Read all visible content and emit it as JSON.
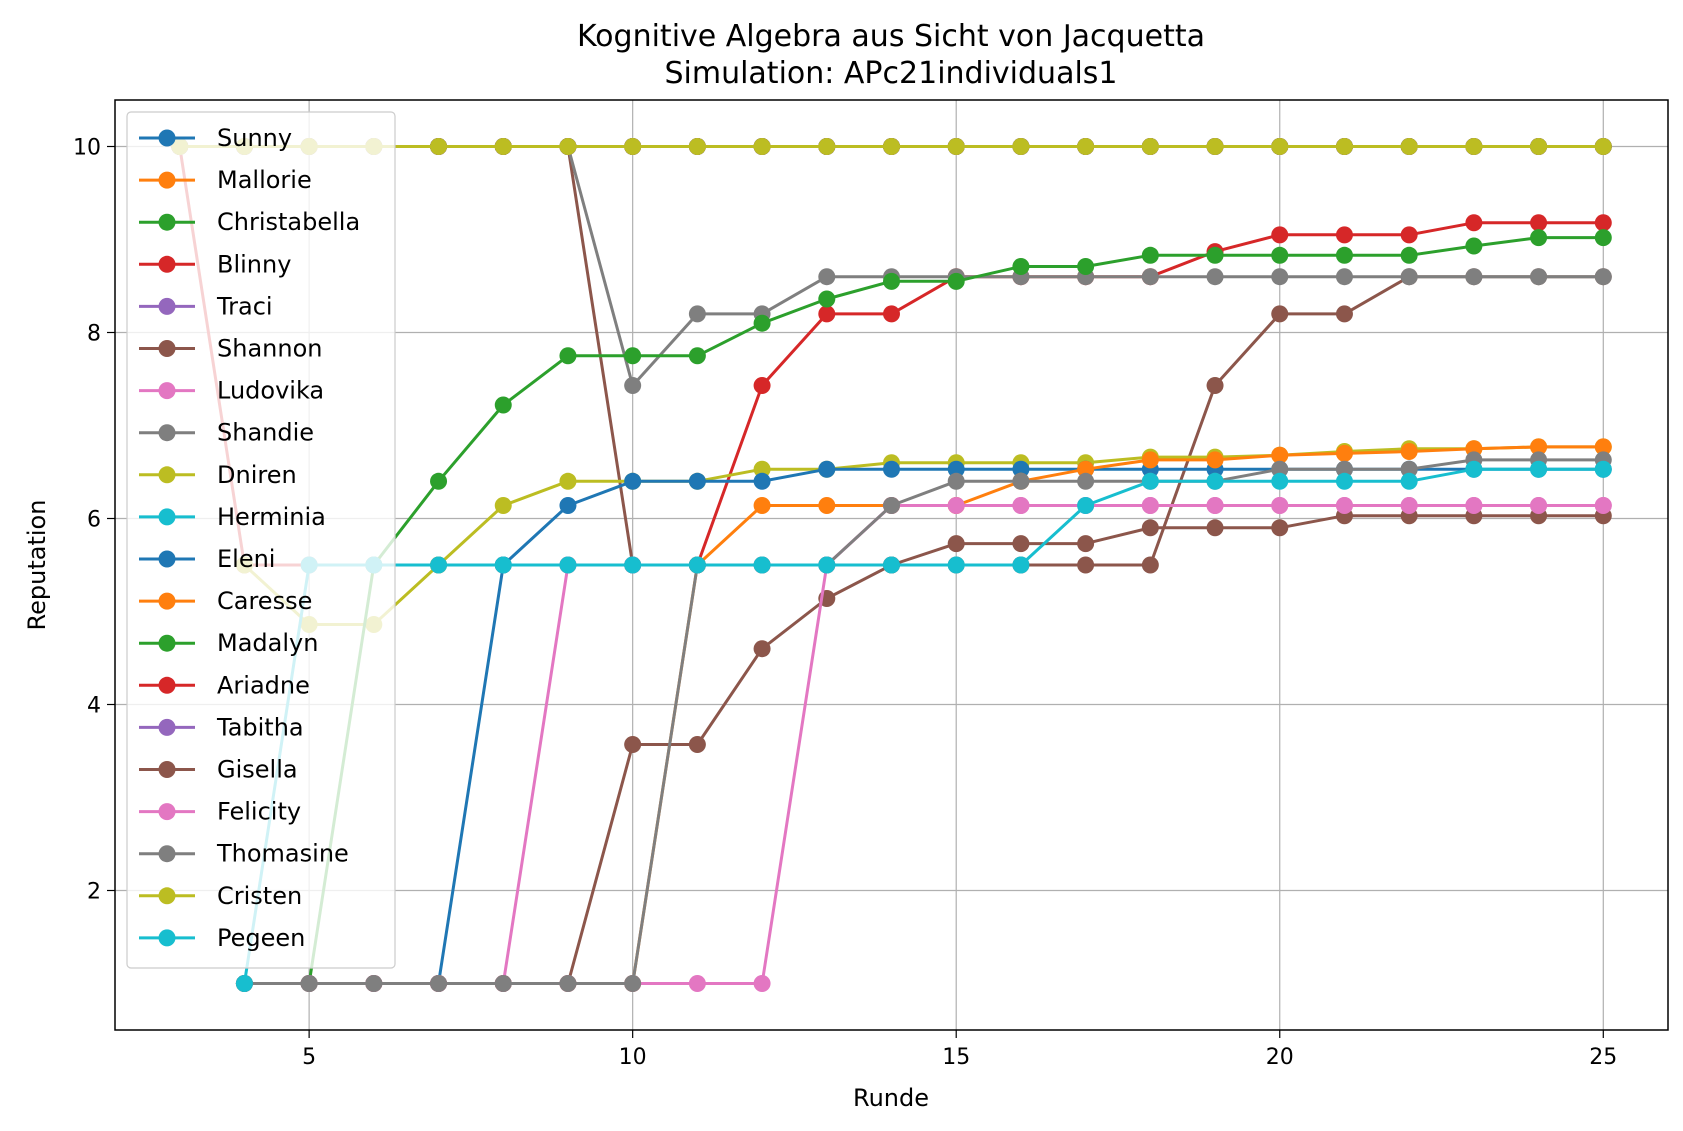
{
  "chart_data": {
    "type": "line",
    "title": "Kognitive Algebra aus Sicht von Jacquetta",
    "subtitle": "Simulation: APc21individuals1",
    "xlabel": "Runde",
    "ylabel": "Reputation",
    "xlim": [
      2,
      26
    ],
    "ylim": [
      0.5,
      10.5
    ],
    "xticks": [
      5,
      10,
      15,
      20,
      25
    ],
    "yticks": [
      2,
      4,
      6,
      8,
      10
    ],
    "grid": true,
    "legend_position": "upper-left",
    "series": [
      {
        "name": "Sunny",
        "color": "#1f77b4",
        "x": [
          3,
          4,
          5,
          6,
          7,
          8,
          9,
          10,
          11,
          12,
          13,
          14,
          15,
          16,
          17,
          18,
          19,
          20,
          21,
          22,
          23,
          24,
          25
        ],
        "y": [
          10,
          10,
          10,
          10,
          10,
          10,
          10,
          10,
          10,
          10,
          10,
          10,
          10,
          10,
          10,
          10,
          10,
          10,
          10,
          10,
          10,
          10,
          10
        ]
      },
      {
        "name": "Mallorie",
        "color": "#ff7f0e",
        "x": [
          3,
          4,
          5,
          6,
          7,
          8,
          9,
          10,
          11,
          12,
          13,
          14,
          15,
          16,
          17,
          18,
          19,
          20,
          21,
          22,
          23,
          24,
          25
        ],
        "y": [
          10,
          10,
          10,
          10,
          10,
          10,
          10,
          10,
          10,
          10,
          10,
          10,
          10,
          10,
          10,
          10,
          10,
          10,
          10,
          10,
          10,
          10,
          10
        ]
      },
      {
        "name": "Christabella",
        "color": "#2ca02c",
        "x": [
          3,
          4,
          5,
          6,
          7,
          8,
          9,
          10,
          11,
          12,
          13,
          14,
          15,
          16,
          17,
          18,
          19,
          20,
          21,
          22,
          23,
          24,
          25
        ],
        "y": [
          10,
          10,
          10,
          10,
          10,
          10,
          10,
          10,
          10,
          10,
          10,
          10,
          10,
          10,
          10,
          10,
          10,
          10,
          10,
          10,
          10,
          10,
          10
        ]
      },
      {
        "name": "Blinny",
        "color": "#d62728",
        "x": [
          3,
          4,
          5,
          6,
          7,
          8,
          9,
          10,
          11,
          12,
          13,
          14,
          15,
          16,
          17,
          18,
          19,
          20,
          21,
          22,
          23,
          24,
          25
        ],
        "y": [
          10,
          5.5,
          5.5,
          5.5,
          5.5,
          5.5,
          5.5,
          5.5,
          5.5,
          7.43,
          8.2,
          8.2,
          8.6,
          8.6,
          8.6,
          8.6,
          8.87,
          9.05,
          9.05,
          9.05,
          9.18,
          9.18,
          9.18
        ]
      },
      {
        "name": "Traci",
        "color": "#9467bd",
        "x": [
          3,
          4,
          5,
          6,
          7,
          8,
          9,
          10,
          11,
          12,
          13,
          14,
          15,
          16,
          17,
          18,
          19,
          20,
          21,
          22,
          23,
          24,
          25
        ],
        "y": [
          10,
          10,
          10,
          10,
          10,
          10,
          10,
          10,
          10,
          10,
          10,
          10,
          10,
          10,
          10,
          10,
          10,
          10,
          10,
          10,
          10,
          10,
          10
        ]
      },
      {
        "name": "Shannon",
        "color": "#8c564b",
        "x": [
          3,
          4,
          5,
          6,
          7,
          8,
          9,
          10,
          11,
          12,
          13,
          14,
          15,
          16,
          17,
          18,
          19,
          20,
          21,
          22,
          23,
          24,
          25
        ],
        "y": [
          10,
          10,
          10,
          10,
          10,
          10,
          10,
          5.5,
          5.5,
          5.5,
          5.5,
          5.5,
          5.5,
          5.5,
          5.5,
          5.5,
          7.43,
          8.2,
          8.2,
          8.6,
          8.6,
          8.6,
          8.6
        ]
      },
      {
        "name": "Ludovika",
        "color": "#e377c2",
        "x": [
          4,
          5,
          6,
          7,
          8,
          9,
          10,
          11,
          12,
          13,
          14,
          15,
          16,
          17,
          18,
          19,
          20,
          21,
          22,
          23,
          24,
          25
        ],
        "y": [
          1,
          1,
          1,
          1,
          1,
          5.5,
          5.5,
          5.5,
          5.5,
          5.5,
          6.14,
          6.14,
          6.14,
          6.14,
          6.14,
          6.14,
          6.14,
          6.14,
          6.14,
          6.14,
          6.14,
          6.14
        ]
      },
      {
        "name": "Shandie",
        "color": "#7f7f7f",
        "x": [
          3,
          4,
          5,
          6,
          7,
          8,
          9,
          10,
          11,
          12,
          13,
          14,
          15,
          16,
          17,
          18,
          19,
          20,
          21,
          22,
          23,
          24,
          25
        ],
        "y": [
          10,
          10,
          10,
          10,
          10,
          10,
          10,
          7.43,
          8.2,
          8.2,
          8.6,
          8.6,
          8.6,
          8.6,
          8.6,
          8.6,
          8.6,
          8.6,
          8.6,
          8.6,
          8.6,
          8.6,
          8.6
        ]
      },
      {
        "name": "Dniren",
        "color": "#bcbd22",
        "x": [
          4,
          5,
          6,
          7,
          8,
          9,
          10,
          11,
          12,
          13,
          14,
          15,
          16,
          17,
          18,
          19,
          20,
          21,
          22,
          23,
          24,
          25
        ],
        "y": [
          5.5,
          4.86,
          4.86,
          5.5,
          6.14,
          6.4,
          6.4,
          6.4,
          6.53,
          6.53,
          6.6,
          6.6,
          6.6,
          6.6,
          6.66,
          6.66,
          6.68,
          6.72,
          6.75,
          6.75,
          6.77,
          6.77
        ]
      },
      {
        "name": "Herminia",
        "color": "#17becf",
        "x": [
          3,
          4,
          5,
          6,
          7,
          8,
          9,
          10,
          11,
          12,
          13,
          14,
          15,
          16,
          17,
          18,
          19,
          20,
          21,
          22,
          23,
          24,
          25
        ],
        "y": [
          10,
          10,
          10,
          10,
          10,
          10,
          10,
          10,
          10,
          10,
          10,
          10,
          10,
          10,
          10,
          10,
          10,
          10,
          10,
          10,
          10,
          10,
          10
        ]
      },
      {
        "name": "Eleni",
        "color": "#1f77b4",
        "x": [
          4,
          5,
          6,
          7,
          8,
          9,
          10,
          11,
          12,
          13,
          14,
          15,
          16,
          17,
          18,
          19,
          20,
          21,
          22,
          23,
          24,
          25
        ],
        "y": [
          1,
          1,
          1,
          1,
          5.5,
          6.14,
          6.4,
          6.4,
          6.4,
          6.53,
          6.53,
          6.53,
          6.53,
          6.53,
          6.53,
          6.53,
          6.53,
          6.53,
          6.53,
          6.53,
          6.53,
          6.53
        ]
      },
      {
        "name": "Caresse",
        "color": "#ff7f0e",
        "x": [
          4,
          5,
          6,
          7,
          8,
          9,
          10,
          11,
          12,
          13,
          14,
          15,
          16,
          17,
          18,
          19,
          20,
          21,
          22,
          23,
          24,
          25
        ],
        "y": [
          1,
          1,
          1,
          1,
          1,
          1,
          1,
          5.5,
          6.14,
          6.14,
          6.14,
          6.14,
          6.4,
          6.53,
          6.63,
          6.63,
          6.68,
          6.7,
          6.72,
          6.75,
          6.77,
          6.77
        ]
      },
      {
        "name": "Madalyn",
        "color": "#2ca02c",
        "x": [
          4,
          5,
          6,
          7,
          8,
          9,
          10,
          11,
          12,
          13,
          14,
          15,
          16,
          17,
          18,
          19,
          20,
          21,
          22,
          23,
          24,
          25
        ],
        "y": [
          1,
          1,
          5.5,
          6.4,
          7.22,
          7.75,
          7.75,
          7.75,
          8.1,
          8.36,
          8.55,
          8.55,
          8.71,
          8.71,
          8.83,
          8.83,
          8.83,
          8.83,
          8.83,
          8.93,
          9.02,
          9.02
        ]
      },
      {
        "name": "Ariadne",
        "color": "#d62728",
        "x": [
          3,
          4,
          5,
          6,
          7,
          8,
          9,
          10,
          11,
          12,
          13,
          14,
          15,
          16,
          17,
          18,
          19,
          20,
          21,
          22,
          23,
          24,
          25
        ],
        "y": [
          10,
          10,
          10,
          10,
          10,
          10,
          10,
          10,
          10,
          10,
          10,
          10,
          10,
          10,
          10,
          10,
          10,
          10,
          10,
          10,
          10,
          10,
          10
        ]
      },
      {
        "name": "Tabitha",
        "color": "#9467bd",
        "x": [
          3,
          4,
          5,
          6,
          7,
          8,
          9,
          10,
          11,
          12,
          13,
          14,
          15,
          16,
          17,
          18,
          19,
          20,
          21,
          22,
          23,
          24,
          25
        ],
        "y": [
          10,
          10,
          10,
          10,
          10,
          10,
          10,
          10,
          10,
          10,
          10,
          10,
          10,
          10,
          10,
          10,
          10,
          10,
          10,
          10,
          10,
          10,
          10
        ]
      },
      {
        "name": "Gisella",
        "color": "#8c564b",
        "x": [
          4,
          5,
          6,
          7,
          8,
          9,
          10,
          11,
          12,
          13,
          14,
          15,
          16,
          17,
          18,
          19,
          20,
          21,
          22,
          23,
          24,
          25
        ],
        "y": [
          1,
          1,
          1,
          1,
          1,
          1,
          3.57,
          3.57,
          4.6,
          5.14,
          5.5,
          5.73,
          5.73,
          5.73,
          5.9,
          5.9,
          5.9,
          6.03,
          6.03,
          6.03,
          6.03,
          6.03
        ]
      },
      {
        "name": "Felicity",
        "color": "#e377c2",
        "x": [
          4,
          5,
          6,
          7,
          8,
          9,
          10,
          11,
          12,
          13,
          14,
          15,
          16,
          17,
          18,
          19,
          20,
          21,
          22,
          23,
          24,
          25
        ],
        "y": [
          1,
          1,
          1,
          1,
          1,
          1,
          1,
          1,
          1,
          5.5,
          6.14,
          6.14,
          6.14,
          6.14,
          6.14,
          6.14,
          6.14,
          6.14,
          6.14,
          6.14,
          6.14,
          6.14
        ]
      },
      {
        "name": "Thomasine",
        "color": "#7f7f7f",
        "x": [
          4,
          5,
          6,
          7,
          8,
          9,
          10,
          11,
          12,
          13,
          14,
          15,
          16,
          17,
          18,
          19,
          20,
          21,
          22,
          23,
          24,
          25
        ],
        "y": [
          1,
          1,
          1,
          1,
          1,
          1,
          1,
          5.5,
          5.5,
          5.5,
          6.14,
          6.4,
          6.4,
          6.4,
          6.4,
          6.4,
          6.53,
          6.53,
          6.53,
          6.63,
          6.63,
          6.63
        ]
      },
      {
        "name": "Cristen",
        "color": "#bcbd22",
        "x": [
          3,
          4,
          5,
          6,
          7,
          8,
          9,
          10,
          11,
          12,
          13,
          14,
          15,
          16,
          17,
          18,
          19,
          20,
          21,
          22,
          23,
          24,
          25
        ],
        "y": [
          10,
          10,
          10,
          10,
          10,
          10,
          10,
          10,
          10,
          10,
          10,
          10,
          10,
          10,
          10,
          10,
          10,
          10,
          10,
          10,
          10,
          10,
          10
        ]
      },
      {
        "name": "Pegeen",
        "color": "#17becf",
        "x": [
          4,
          5,
          6,
          7,
          8,
          9,
          10,
          11,
          12,
          13,
          14,
          15,
          16,
          17,
          18,
          19,
          20,
          21,
          22,
          23,
          24,
          25
        ],
        "y": [
          1,
          5.5,
          5.5,
          5.5,
          5.5,
          5.5,
          5.5,
          5.5,
          5.5,
          5.5,
          5.5,
          5.5,
          5.5,
          6.14,
          6.4,
          6.4,
          6.4,
          6.4,
          6.4,
          6.53,
          6.53,
          6.53
        ]
      }
    ]
  }
}
